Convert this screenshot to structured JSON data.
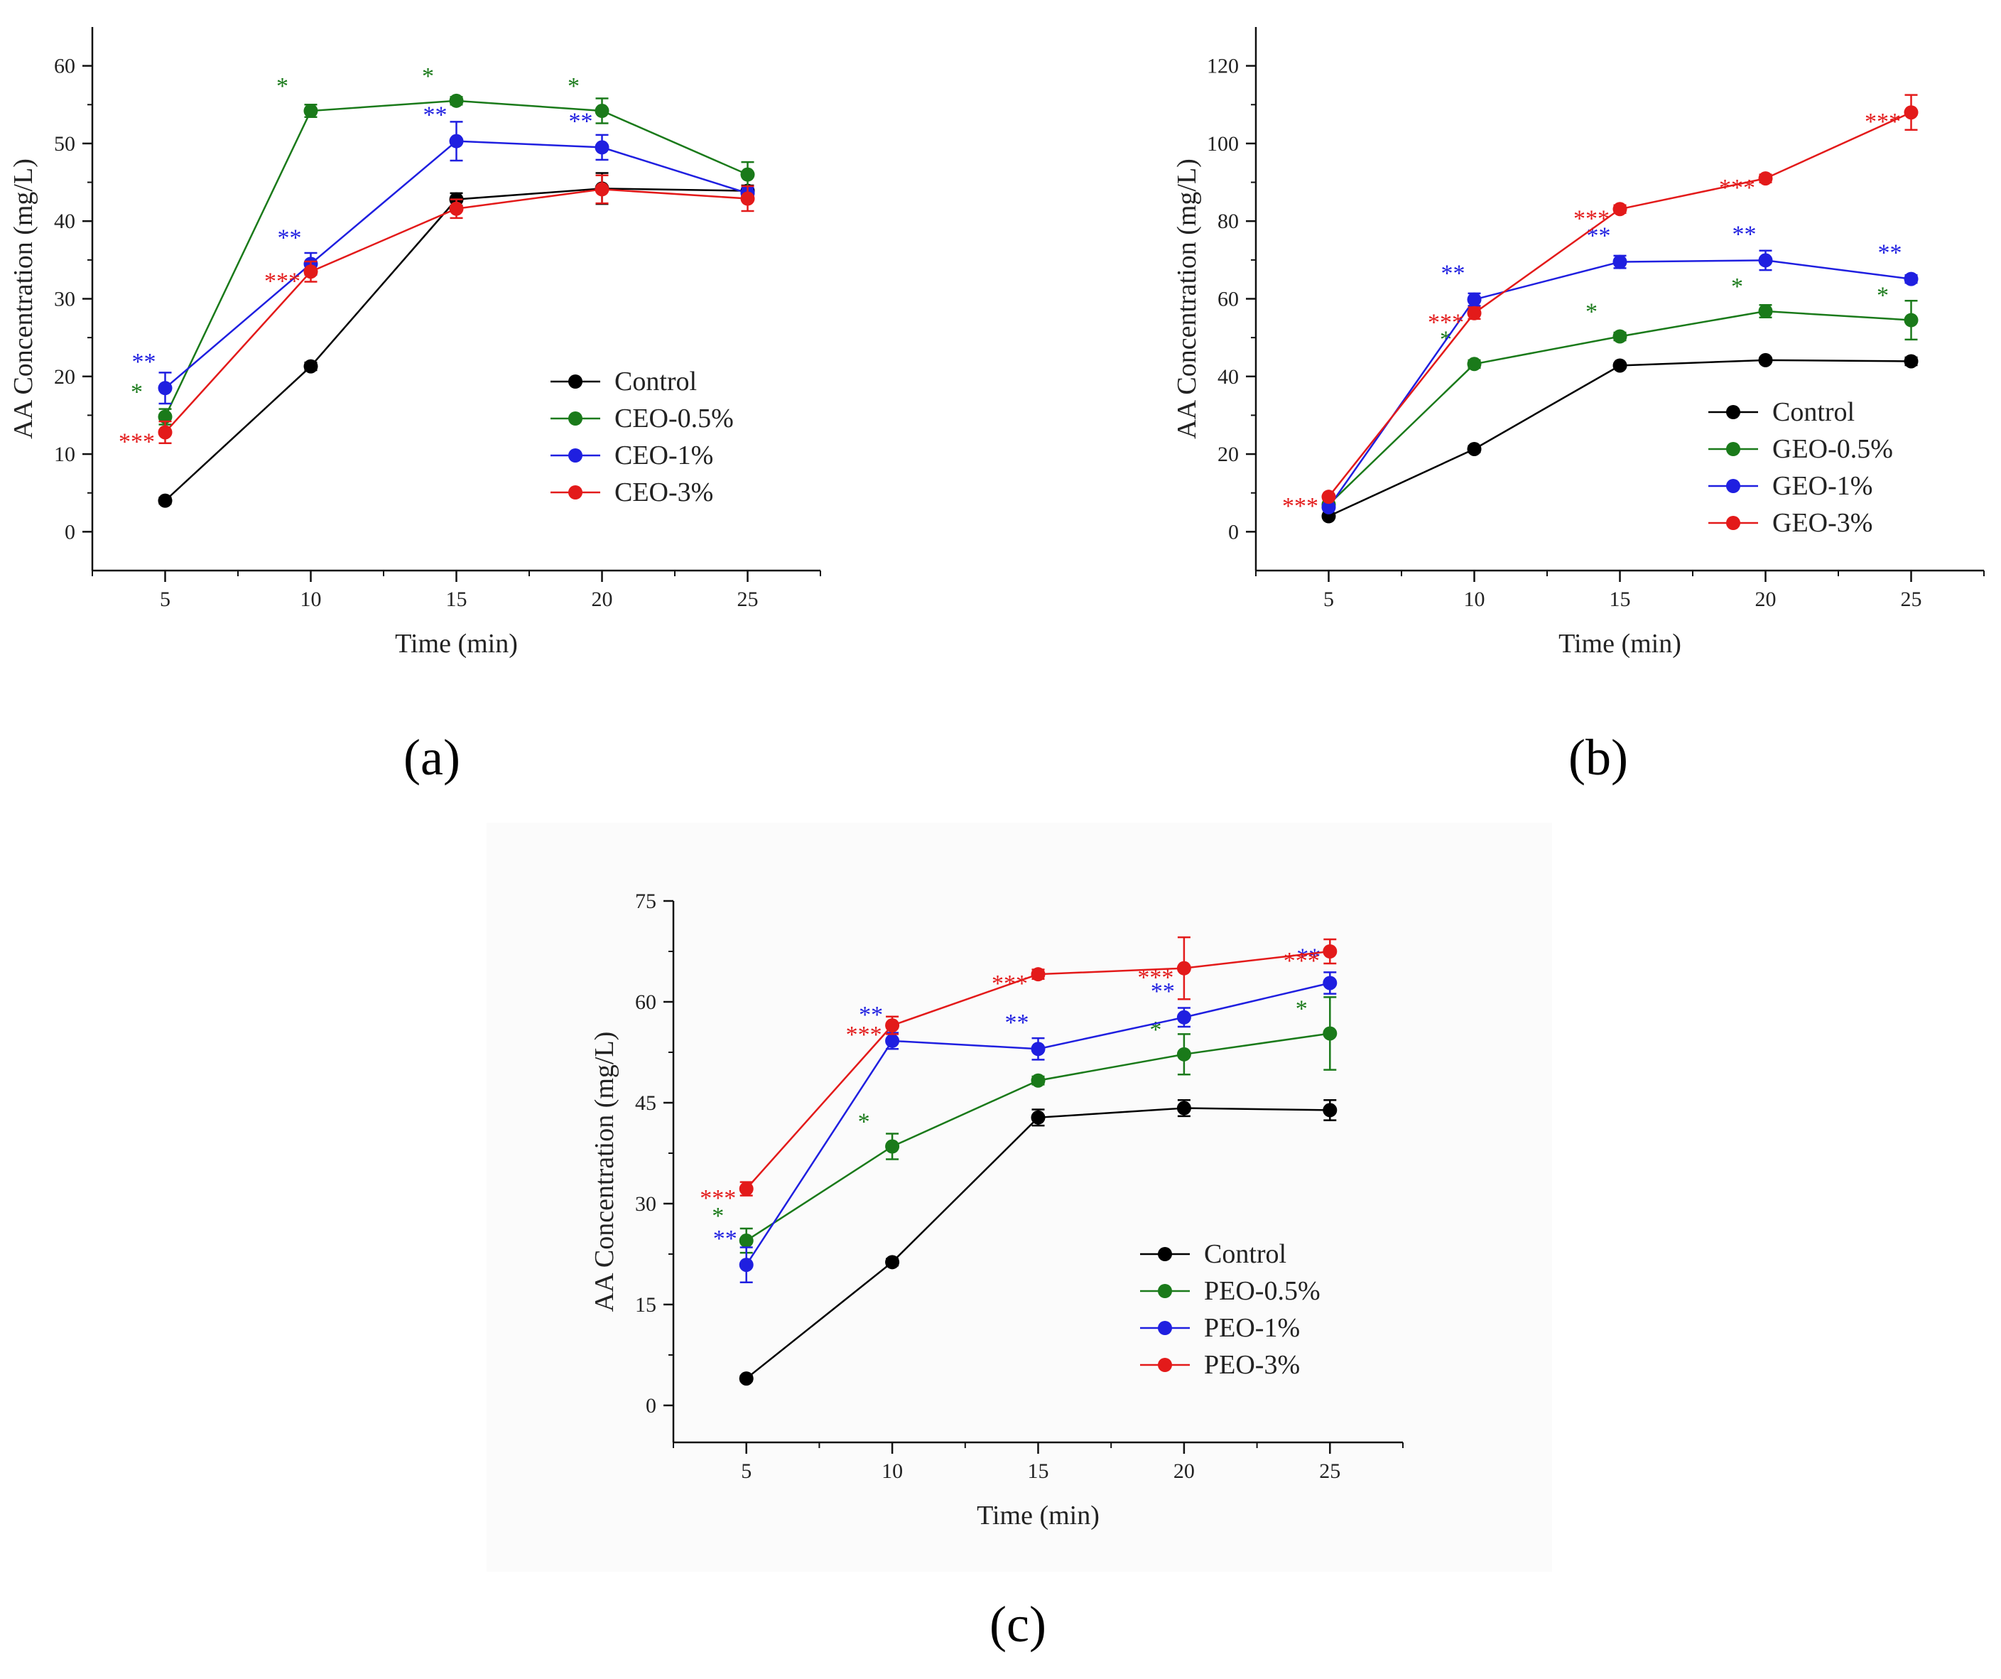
{
  "chart_data": [
    {
      "type": "line",
      "panel_label": "(a)",
      "xlabel": "Time (min)",
      "ylabel": "AA Concentration (mg/L)",
      "x": [
        5,
        10,
        15,
        20,
        25
      ],
      "xlim": [
        2.5,
        27.5
      ],
      "xticks": [
        "5",
        "10",
        "15",
        "20",
        "25"
      ],
      "ylim": [
        -5,
        65
      ],
      "yticks": [
        0,
        10,
        20,
        30,
        40,
        50,
        60
      ],
      "ytick_labels": [
        "0",
        "10",
        "20",
        "30",
        "40",
        "50",
        "60"
      ],
      "legend_position": "center-right",
      "series": [
        {
          "name": "Control",
          "color": "#000000",
          "values": [
            4,
            21.3,
            42.8,
            44.2,
            43.9
          ],
          "err": [
            0.4,
            0.5,
            0.8,
            2.0,
            0.7
          ],
          "sig": [
            "",
            "",
            "",
            "",
            ""
          ]
        },
        {
          "name": "CEO-0.5%",
          "color": "#1a7a1a",
          "values": [
            14.8,
            54.2,
            55.5,
            54.2,
            46.0
          ],
          "err": [
            1.0,
            0.8,
            0.5,
            1.6,
            1.6
          ],
          "sig": [
            "*",
            "*",
            "*",
            "*",
            ""
          ]
        },
        {
          "name": "CEO-1%",
          "color": "#1f1fe0",
          "values": [
            18.5,
            34.5,
            50.3,
            49.5,
            43.6
          ],
          "err": [
            2.0,
            1.4,
            2.5,
            1.6,
            0.7
          ],
          "sig": [
            "**",
            "**",
            "**",
            "**",
            ""
          ]
        },
        {
          "name": "CEO-3%",
          "color": "#e31a1a",
          "values": [
            12.8,
            33.5,
            41.6,
            44.1,
            42.9
          ],
          "err": [
            1.4,
            1.3,
            1.2,
            1.8,
            1.6
          ],
          "sig": [
            "***",
            "***",
            "",
            "",
            ""
          ]
        }
      ]
    },
    {
      "type": "line",
      "panel_label": "(b)",
      "xlabel": "Time (min)",
      "ylabel": "AA Concentration (mg/L)",
      "x": [
        5,
        10,
        15,
        20,
        25
      ],
      "xlim": [
        2.5,
        27.5
      ],
      "xticks": [
        "5",
        "10",
        "15",
        "20",
        "25"
      ],
      "ylim": [
        -10,
        130
      ],
      "yticks": [
        0,
        20,
        40,
        60,
        80,
        100,
        120
      ],
      "ytick_labels": [
        "0",
        "20",
        "40",
        "60",
        "80",
        "100",
        "120"
      ],
      "legend_position": "center-right",
      "series": [
        {
          "name": "Control",
          "color": "#000000",
          "values": [
            4,
            21.3,
            42.8,
            44.2,
            43.9
          ],
          "err": [
            0.5,
            0.8,
            0.6,
            0.6,
            1.0
          ],
          "sig": [
            "",
            "",
            "",
            "",
            ""
          ]
        },
        {
          "name": "GEO-0.5%",
          "color": "#1a7a1a",
          "values": [
            7,
            43.2,
            50.3,
            56.8,
            54.5
          ],
          "err": [
            0.5,
            1.0,
            1.0,
            1.6,
            5.0
          ],
          "sig": [
            "",
            "*",
            "*",
            "*",
            "*"
          ]
        },
        {
          "name": "GEO-1%",
          "color": "#1f1fe0",
          "values": [
            6.3,
            59.8,
            69.5,
            69.9,
            65.1
          ],
          "err": [
            0.5,
            1.6,
            1.6,
            2.5,
            1.0
          ],
          "sig": [
            "",
            "**",
            "**",
            "**",
            "**"
          ]
        },
        {
          "name": "GEO-3%",
          "color": "#e31a1a",
          "values": [
            9,
            56.3,
            83.1,
            91,
            108
          ],
          "err": [
            0.5,
            1.5,
            1.0,
            1.0,
            4.5
          ],
          "sig": [
            "***",
            "***",
            "***",
            "***",
            "***"
          ]
        }
      ]
    },
    {
      "type": "line",
      "panel_label": "(c)",
      "xlabel": "Time (min)",
      "ylabel": "AA Concentration (mg/L)",
      "x": [
        5,
        10,
        15,
        20,
        25
      ],
      "xlim": [
        2.5,
        27.5
      ],
      "xticks": [
        "5",
        "10",
        "15",
        "20",
        "25"
      ],
      "ylim": [
        -5.5,
        75
      ],
      "yticks": [
        0,
        15,
        30,
        45,
        60,
        75
      ],
      "ytick_labels": [
        "0",
        "15",
        "30",
        "45",
        "60",
        "75"
      ],
      "legend_position": "lower-right",
      "series": [
        {
          "name": "Control",
          "color": "#000000",
          "values": [
            4,
            21.3,
            42.8,
            44.2,
            43.9
          ],
          "err": [
            0.4,
            0.5,
            1.2,
            1.2,
            1.5
          ],
          "sig": [
            "",
            "",
            "",
            "",
            ""
          ]
        },
        {
          "name": "PEO-0.5%",
          "color": "#1a7a1a",
          "values": [
            24.5,
            38.5,
            48.3,
            52.2,
            55.3
          ],
          "err": [
            1.8,
            1.9,
            0.6,
            3.0,
            5.4
          ],
          "sig": [
            "*",
            "*",
            "",
            "*",
            "*"
          ]
        },
        {
          "name": "PEO-1%",
          "color": "#1f1fe0",
          "values": [
            20.9,
            54.2,
            53.0,
            57.7,
            62.8
          ],
          "err": [
            2.6,
            1.2,
            1.6,
            1.4,
            1.6
          ],
          "sig": [
            "**",
            "**",
            "**",
            "**",
            "**"
          ]
        },
        {
          "name": "PEO-3%",
          "color": "#e31a1a",
          "values": [
            32.2,
            56.5,
            64.1,
            65.0,
            67.5
          ],
          "err": [
            1.0,
            1.3,
            0.7,
            4.6,
            1.8
          ],
          "sig": [
            "***",
            "***",
            "***",
            "***",
            "***"
          ]
        }
      ]
    }
  ]
}
